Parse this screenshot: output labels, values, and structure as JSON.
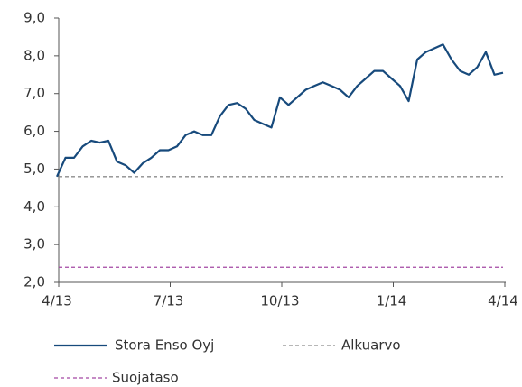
{
  "chart_data": {
    "type": "line",
    "categories": [
      "4/13",
      null,
      null,
      null,
      null,
      null,
      null,
      null,
      null,
      null,
      null,
      null,
      null,
      "7/13",
      null,
      null,
      null,
      null,
      null,
      null,
      null,
      null,
      null,
      null,
      null,
      null,
      "10/13",
      null,
      null,
      null,
      null,
      null,
      null,
      null,
      null,
      null,
      null,
      null,
      null,
      "1/14",
      null,
      null,
      null,
      null,
      null,
      null,
      null,
      null,
      null,
      null,
      null,
      null,
      "4/14"
    ],
    "series": [
      {
        "name": "Stora Enso Oyj",
        "color": "#174a7c",
        "values": [
          4.8,
          5.3,
          5.3,
          5.6,
          5.75,
          5.7,
          5.75,
          5.2,
          5.1,
          4.9,
          5.15,
          5.3,
          5.5,
          5.5,
          5.6,
          5.9,
          6.0,
          5.9,
          5.9,
          6.4,
          6.7,
          6.75,
          6.6,
          6.3,
          6.2,
          6.1,
          6.9,
          6.7,
          6.9,
          7.1,
          7.2,
          7.3,
          7.2,
          7.1,
          6.9,
          7.2,
          7.4,
          7.6,
          7.6,
          7.4,
          7.2,
          6.8,
          7.9,
          8.1,
          8.2,
          8.3,
          7.9,
          7.6,
          7.5,
          7.7,
          8.1,
          7.5,
          7.55
        ]
      }
    ],
    "reference_lines": [
      {
        "name": "Alkuarvo",
        "value": 4.8,
        "color": "#8c8c8c",
        "dashed": true
      },
      {
        "name": "Suojataso",
        "value": 2.4,
        "color": "#a447a4",
        "dashed": true
      }
    ],
    "ylim": [
      2,
      9
    ],
    "yticks": [
      {
        "value": 2,
        "label": "2,0"
      },
      {
        "value": 3,
        "label": "3,0"
      },
      {
        "value": 4,
        "label": "4,0"
      },
      {
        "value": 5,
        "label": "5,0"
      },
      {
        "value": 6,
        "label": "6,0"
      },
      {
        "value": 7,
        "label": "7,0"
      },
      {
        "value": 8,
        "label": "8,0"
      },
      {
        "value": 9,
        "label": "9,0"
      }
    ],
    "grid": false
  }
}
